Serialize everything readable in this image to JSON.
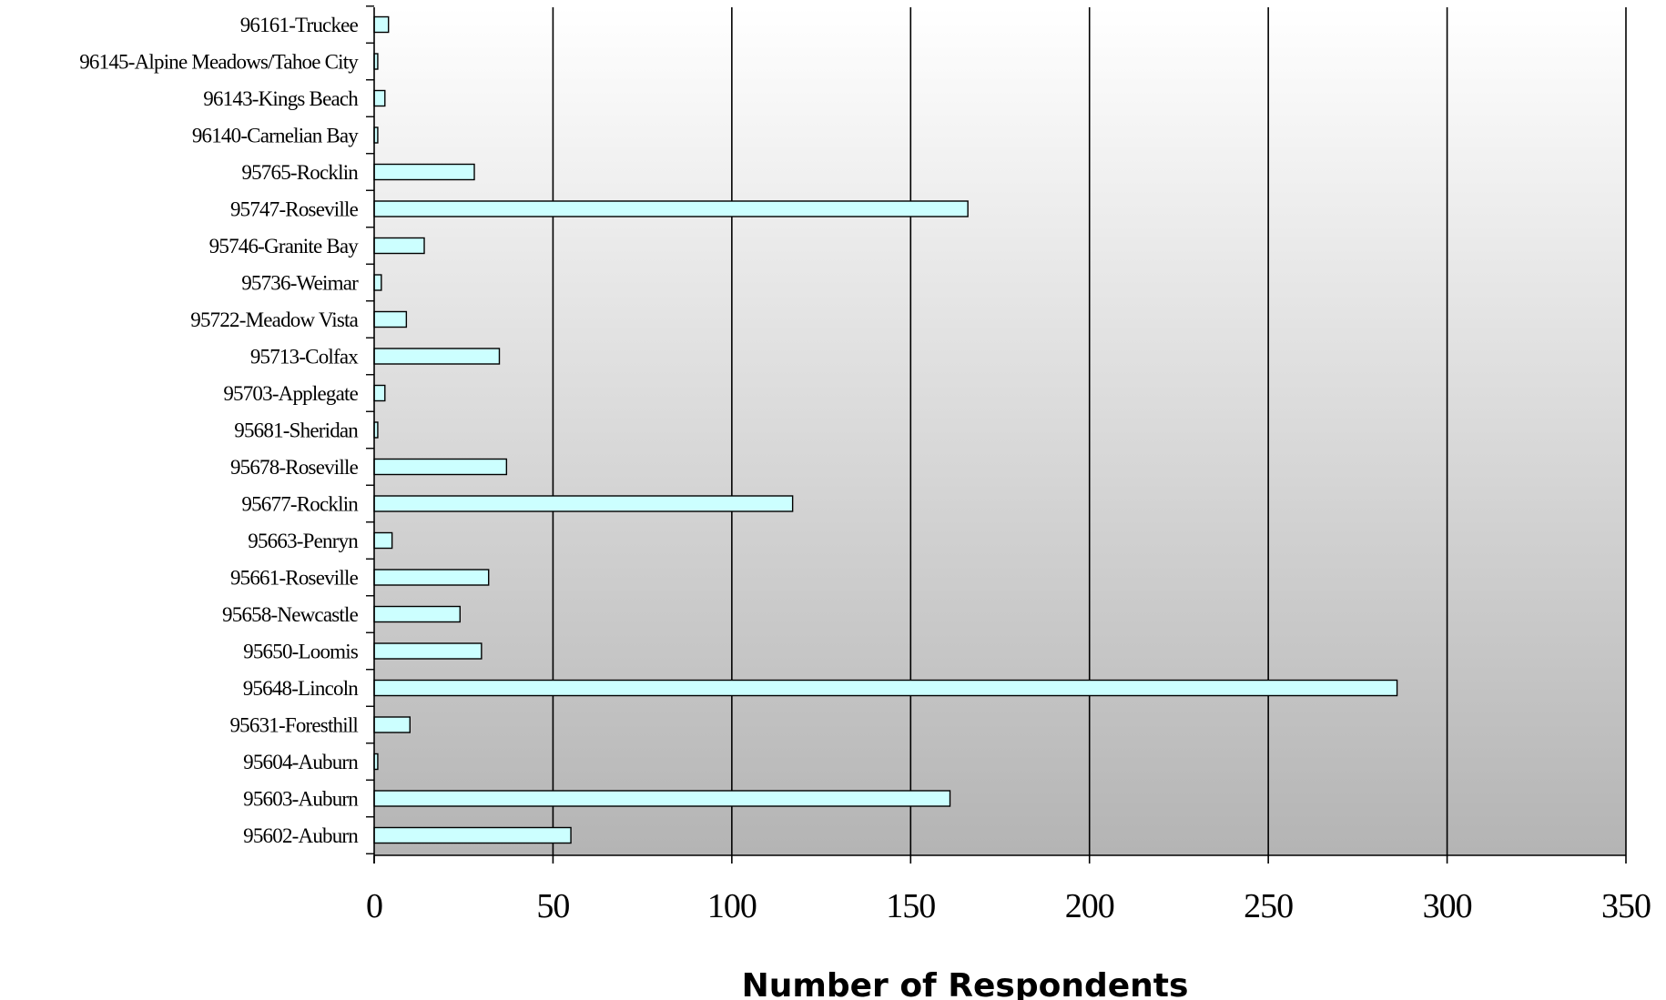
{
  "chart_data": {
    "type": "bar",
    "orientation": "horizontal",
    "title": "",
    "xlabel": "Number of Respondents",
    "ylabel": "",
    "xlim": [
      0,
      350
    ],
    "xticks": [
      0,
      50,
      100,
      150,
      200,
      250,
      300,
      350
    ],
    "grid": "vertical",
    "legend": "none",
    "categories": [
      "96161-Truckee",
      "96145-Alpine Meadows/Tahoe City",
      "96143-Kings Beach",
      "96140-Carnelian Bay",
      "95765-Rocklin",
      "95747-Roseville",
      "95746-Granite Bay",
      "95736-Weimar",
      "95722-Meadow Vista",
      "95713-Colfax",
      "95703-Applegate",
      "95681-Sheridan",
      "95678-Roseville",
      "95677-Rocklin",
      "95663-Penryn",
      "95661-Roseville",
      "95658-Newcastle",
      "95650-Loomis",
      "95648-Lincoln",
      "95631-Foresthill",
      "95604-Auburn",
      "95603-Auburn",
      "95602-Auburn"
    ],
    "values": [
      4,
      1,
      3,
      1,
      28,
      166,
      14,
      2,
      9,
      35,
      3,
      1,
      37,
      117,
      5,
      32,
      24,
      30,
      286,
      10,
      1,
      161,
      55
    ],
    "colors": {
      "bar_fill": "#ccffff",
      "bar_stroke": "#000000",
      "gradient_top": "#ffffff",
      "gradient_bottom": "#b4b4b4",
      "gridline": "#000000"
    }
  }
}
